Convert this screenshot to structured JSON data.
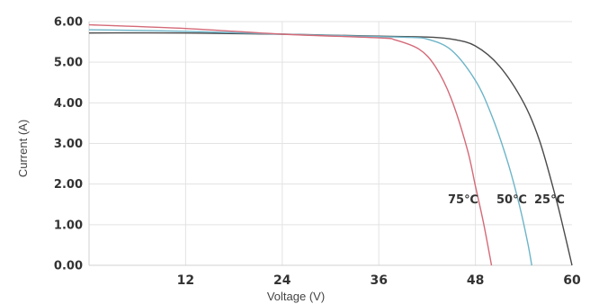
{
  "chart_data": {
    "type": "line",
    "title": "",
    "xlabel": "Voltage (V)",
    "ylabel": "Current (A)",
    "xlim": [
      0,
      60
    ],
    "ylim": [
      0,
      6
    ],
    "x_ticks": [
      "12",
      "24",
      "36",
      "48",
      "60"
    ],
    "y_ticks": [
      "0.00",
      "1.00",
      "2.00",
      "3.00",
      "4.00",
      "5.00",
      "6.00"
    ],
    "grid": true,
    "series": [
      {
        "label": "25℃",
        "color": "#4a4a4a",
        "points": [
          [
            0,
            5.72
          ],
          [
            12,
            5.72
          ],
          [
            24,
            5.69
          ],
          [
            36,
            5.64
          ],
          [
            42,
            5.62
          ],
          [
            45,
            5.57
          ],
          [
            48,
            5.4
          ],
          [
            51,
            4.9
          ],
          [
            54,
            4.0
          ],
          [
            56,
            3.05
          ],
          [
            58,
            1.65
          ],
          [
            59,
            0.85
          ],
          [
            60,
            0.0
          ]
        ]
      },
      {
        "label": "50℃",
        "color": "#6cb4c8",
        "points": [
          [
            0,
            5.8
          ],
          [
            12,
            5.76
          ],
          [
            24,
            5.69
          ],
          [
            36,
            5.63
          ],
          [
            40,
            5.61
          ],
          [
            42,
            5.57
          ],
          [
            45,
            5.3
          ],
          [
            48,
            4.55
          ],
          [
            50,
            3.7
          ],
          [
            52,
            2.55
          ],
          [
            53.5,
            1.45
          ],
          [
            54.5,
            0.55
          ],
          [
            55,
            0.0
          ]
        ]
      },
      {
        "label": "75℃",
        "color": "#d46a78",
        "points": [
          [
            0,
            5.92
          ],
          [
            12,
            5.83
          ],
          [
            24,
            5.69
          ],
          [
            36,
            5.6
          ],
          [
            38,
            5.55
          ],
          [
            41,
            5.32
          ],
          [
            43,
            4.9
          ],
          [
            45,
            4.1
          ],
          [
            47,
            2.85
          ],
          [
            48,
            1.95
          ],
          [
            49,
            1.05
          ],
          [
            50,
            0.0
          ]
        ]
      }
    ]
  }
}
